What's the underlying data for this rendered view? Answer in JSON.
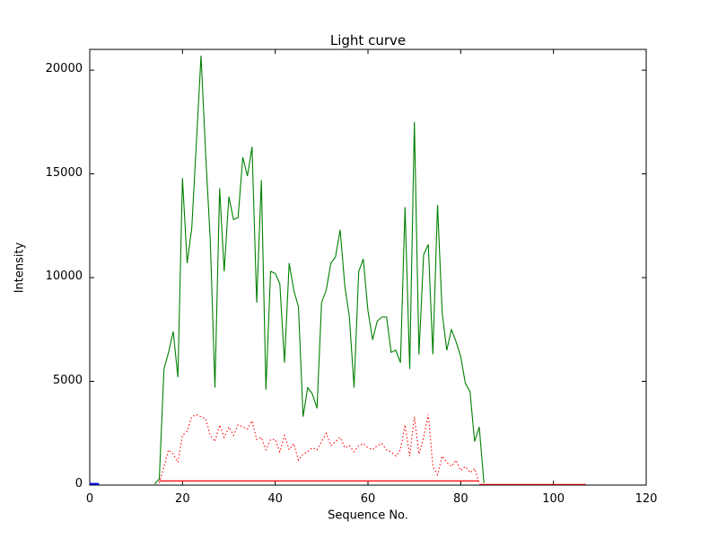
{
  "chart_data": {
    "type": "line",
    "title": "Light curve",
    "xlabel": "Sequence No.",
    "ylabel": "Intensity",
    "xlim": [
      0,
      120
    ],
    "ylim": [
      0,
      21000
    ],
    "xticks": [
      0,
      20,
      40,
      60,
      80,
      100,
      120
    ],
    "yticks": [
      0,
      5000,
      10000,
      15000,
      20000
    ],
    "grid": false,
    "legend": "none",
    "background_color": "#ffffff",
    "axes_color": "#000000",
    "series": [
      {
        "name": "green-lightcurve",
        "color": "#008000",
        "style": "solid",
        "width": 1.1,
        "x": [
          14,
          15,
          16,
          17,
          18,
          19,
          20,
          21,
          22,
          23,
          24,
          25,
          26,
          27,
          28,
          29,
          30,
          31,
          32,
          33,
          34,
          35,
          36,
          37,
          38,
          39,
          40,
          41,
          42,
          43,
          44,
          45,
          46,
          47,
          48,
          49,
          50,
          51,
          52,
          53,
          54,
          55,
          56,
          57,
          58,
          59,
          60,
          61,
          62,
          63,
          64,
          65,
          66,
          67,
          68,
          69,
          70,
          71,
          72,
          73,
          74,
          75,
          76,
          77,
          78,
          79,
          80,
          81,
          82,
          83,
          84,
          85
        ],
        "y": [
          50,
          300,
          5600,
          6400,
          7400,
          5200,
          14800,
          10700,
          12400,
          16500,
          20700,
          15900,
          11800,
          4700,
          14300,
          10300,
          13900,
          12800,
          12900,
          15800,
          14900,
          16300,
          8800,
          14700,
          4600,
          10300,
          10200,
          9700,
          5900,
          10700,
          9400,
          8600,
          3300,
          4700,
          4400,
          3700,
          8800,
          9400,
          10700,
          11000,
          12300,
          9600,
          8100,
          4700,
          10300,
          10900,
          8400,
          7000,
          7900,
          8100,
          8100,
          6400,
          6500,
          5900,
          13400,
          5600,
          17500,
          6300,
          11100,
          11600,
          6300,
          13500,
          8300,
          6500,
          7500,
          6900,
          6200,
          4900,
          4500,
          2100,
          2800,
          100
        ]
      },
      {
        "name": "red-dotted-curve",
        "color": "#ff0000",
        "style": "dotted",
        "width": 1.1,
        "x": [
          15,
          16,
          17,
          18,
          19,
          20,
          21,
          22,
          23,
          24,
          25,
          26,
          27,
          28,
          29,
          30,
          31,
          32,
          33,
          34,
          35,
          36,
          37,
          38,
          39,
          40,
          41,
          42,
          43,
          44,
          45,
          46,
          47,
          48,
          49,
          50,
          51,
          52,
          53,
          54,
          55,
          56,
          57,
          58,
          59,
          60,
          61,
          62,
          63,
          64,
          65,
          66,
          67,
          68,
          69,
          70,
          71,
          72,
          73,
          74,
          75,
          76,
          77,
          78,
          79,
          80,
          81,
          82,
          83,
          84
        ],
        "y": [
          100,
          900,
          1700,
          1500,
          1100,
          2400,
          2600,
          3300,
          3400,
          3300,
          3200,
          2400,
          2100,
          2900,
          2300,
          2800,
          2400,
          2900,
          2800,
          2700,
          3100,
          2200,
          2300,
          1700,
          2200,
          2200,
          1600,
          2400,
          1700,
          2000,
          1200,
          1500,
          1600,
          1800,
          1700,
          2100,
          2500,
          1900,
          2100,
          2300,
          1800,
          1900,
          1600,
          1900,
          2000,
          1800,
          1700,
          1900,
          2000,
          1700,
          1600,
          1400,
          1700,
          2900,
          1400,
          3300,
          1500,
          2300,
          3400,
          900,
          500,
          1400,
          1100,
          900,
          1200,
          700,
          900,
          600,
          800,
          100
        ]
      },
      {
        "name": "red-baseline",
        "color": "#ff0000",
        "style": "solid",
        "width": 1.2,
        "x": [
          15,
          84
        ],
        "y": [
          200,
          200
        ]
      },
      {
        "name": "red-tail",
        "color": "#cc0000",
        "style": "solid",
        "width": 1.2,
        "x": [
          84,
          107
        ],
        "y": [
          30,
          30
        ]
      },
      {
        "name": "blue-start-mark",
        "color": "#0000ff",
        "style": "solid",
        "width": 2,
        "x": [
          0,
          2
        ],
        "y": [
          60,
          60
        ]
      }
    ]
  }
}
